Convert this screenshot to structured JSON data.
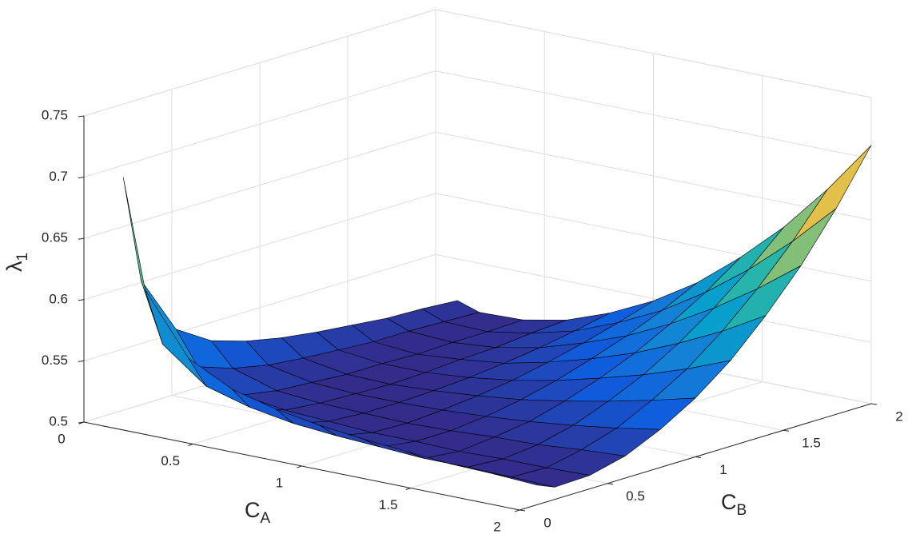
{
  "chart_data": {
    "type": "surface",
    "x": [
      0.1,
      0.2,
      0.4,
      0.6,
      0.8,
      1,
      1.2,
      1.4,
      1.6,
      1.8,
      2
    ],
    "y": [
      0.1,
      0.2,
      0.4,
      0.6,
      0.8,
      1,
      1.2,
      1.4,
      1.6,
      1.8,
      2
    ],
    "z": [
      [
        0.699,
        0.611,
        0.562,
        0.544,
        0.535,
        0.529,
        0.525,
        0.522,
        0.519,
        0.518,
        0.516
      ],
      [
        0.611,
        0.562,
        0.535,
        0.525,
        0.519,
        0.516,
        0.514,
        0.512,
        0.512,
        0.511,
        0.51
      ],
      [
        0.562,
        0.535,
        0.519,
        0.514,
        0.512,
        0.51,
        0.51,
        0.509,
        0.51,
        0.51,
        0.511
      ],
      [
        0.544,
        0.525,
        0.514,
        0.511,
        0.51,
        0.509,
        0.51,
        0.512,
        0.513,
        0.516,
        0.518
      ],
      [
        0.535,
        0.519,
        0.512,
        0.51,
        0.51,
        0.511,
        0.513,
        0.516,
        0.52,
        0.525,
        0.531
      ],
      [
        0.529,
        0.516,
        0.51,
        0.509,
        0.511,
        0.514,
        0.518,
        0.524,
        0.531,
        0.539,
        0.548
      ],
      [
        0.525,
        0.514,
        0.51,
        0.51,
        0.513,
        0.518,
        0.525,
        0.534,
        0.544,
        0.556,
        0.57
      ],
      [
        0.522,
        0.512,
        0.509,
        0.512,
        0.516,
        0.524,
        0.534,
        0.546,
        0.561,
        0.578,
        0.598
      ],
      [
        0.519,
        0.512,
        0.51,
        0.513,
        0.52,
        0.531,
        0.544,
        0.561,
        0.581,
        0.604,
        0.63
      ],
      [
        0.518,
        0.511,
        0.51,
        0.516,
        0.525,
        0.539,
        0.556,
        0.578,
        0.604,
        0.634,
        0.668
      ],
      [
        0.516,
        0.51,
        0.511,
        0.518,
        0.531,
        0.548,
        0.57,
        0.598,
        0.63,
        0.668,
        0.711
      ]
    ],
    "xlabel": {
      "base": "C",
      "sub": "A"
    },
    "ylabel": {
      "base": "C",
      "sub": "B"
    },
    "zlabel": {
      "base": "λ",
      "sub": "1"
    },
    "xlim": [
      0,
      2
    ],
    "ylim": [
      0,
      2
    ],
    "zlim": [
      0.5,
      0.75
    ],
    "xticks": [
      0,
      0.5,
      1,
      1.5,
      2
    ],
    "yticks": [
      0,
      0.5,
      1,
      1.5,
      2
    ],
    "zticks": [
      0.5,
      0.55,
      0.6,
      0.65,
      0.7,
      0.75
    ],
    "grid": true,
    "colormap": [
      "#352a87",
      "#0f5cdd",
      "#1481d6",
      "#06a4ca",
      "#2eb7a4",
      "#87bf77",
      "#d1bb59",
      "#fec832",
      "#f9fb0e"
    ],
    "edgecolor": "#000000"
  }
}
